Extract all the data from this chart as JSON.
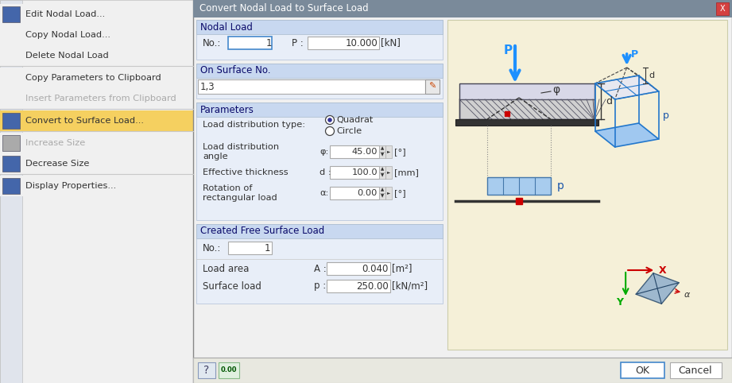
{
  "window_title": "Convert Nodal Load to Surface Load",
  "bg_color": "#d4d0c8",
  "left_menu_bg": "#f0f0f0",
  "left_icon_bar_bg": "#dde0e8",
  "highlight_row_bg": "#f5d060",
  "dialog_bg": "#f0f0f0",
  "titlebar_bg": "#7a8a9a",
  "section_header_bg": "#c8d8f0",
  "form_area_bg": "#e8eef8",
  "right_panel_bg": "#f5f0d8",
  "menu_items": [
    {
      "text": "Edit Nodal Load...",
      "has_icon": true,
      "gray": false,
      "sep_after": false
    },
    {
      "text": "Copy Nodal Load...",
      "has_icon": false,
      "gray": false,
      "sep_after": false
    },
    {
      "text": "Delete Nodal Load",
      "has_icon": false,
      "gray": false,
      "sep_after": true
    },
    {
      "text": "Copy Parameters to Clipboard",
      "has_icon": false,
      "gray": false,
      "sep_after": false
    },
    {
      "text": "Insert Parameters from Clipboard",
      "has_icon": false,
      "gray": true,
      "sep_after": true
    },
    {
      "text": "Convert to Surface Load...",
      "has_icon": true,
      "gray": false,
      "highlight": true,
      "sep_after": true
    },
    {
      "text": "Increase Size",
      "has_icon": true,
      "gray": true,
      "sep_after": false
    },
    {
      "text": "Decrease Size",
      "has_icon": true,
      "gray": false,
      "sep_after": true
    },
    {
      "text": "Display Properties...",
      "has_icon": true,
      "gray": false,
      "sep_after": false
    }
  ],
  "nodal_load_label": "Nodal Load",
  "no_label": "No.:",
  "no_value": "1",
  "p_label": "P :",
  "p_value": "10.000",
  "p_unit": "[kN]",
  "surface_no_label": "On Surface No.",
  "surface_no_value": "1,3",
  "params_label": "Parameters",
  "load_dist_type_label": "Load distribution type:",
  "quadrat_label": "Quadrat",
  "circle_label": "Circle",
  "phi_label": "φ:",
  "phi_value": "45.00",
  "phi_unit": "[°]",
  "eff_thickness_label": "Effective thickness",
  "d_label": "d :",
  "d_value": "100.0",
  "d_unit": "[mm]",
  "rotation_label_1": "Rotation of",
  "rotation_label_2": "rectangular load",
  "alpha_label": "α:",
  "alpha_value": "0.00",
  "alpha_unit": "[°]",
  "free_surface_label": "Created Free Surface Load",
  "free_no_label": "No.:",
  "free_no_value": "1",
  "load_area_label": "Load area",
  "A_label": "A :",
  "A_value": "0.040",
  "A_unit": "[m²]",
  "surface_load_label": "Surface load",
  "p2_label": "p :",
  "p2_value": "250.00",
  "p2_unit": "[kN/m²]",
  "ok_label": "OK",
  "cancel_label": "Cancel",
  "arrow_blue": "#1e90ff",
  "line_dark": "#333333",
  "hatch_color": "#888888",
  "slab_fill": "#c8c8d8",
  "ground_fill": "#555555",
  "load_rect_fill": "#a8ccee",
  "load_rect_edge": "#4477aa",
  "box_3d_color": "#2277cc",
  "coord_x_color": "#cc0000",
  "coord_y_color": "#00aa00",
  "coord_z_color": "#cc0000",
  "red_dot": "#cc0000",
  "phi_text": "φ",
  "d_text": "d",
  "p_text": "p",
  "P_text": "P",
  "alpha_text": "α",
  "X_text": "X",
  "Y_text": "Y"
}
